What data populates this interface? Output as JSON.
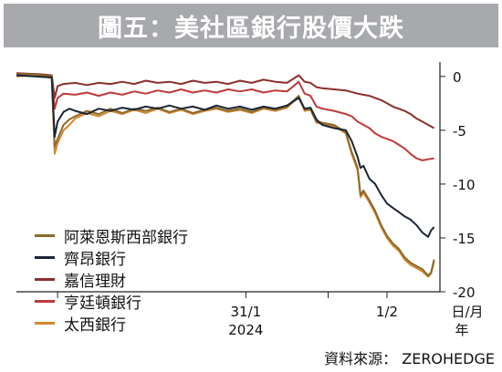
{
  "title": "圖五：美社區銀行股價大跌",
  "source": "資料來源： ZEROHEDGE",
  "chart_data": {
    "type": "line",
    "title": "圖五：美社區銀行股價大跌",
    "xlabel": "日/月\n年",
    "xlabel_line1": "日/月",
    "xlabel_line2": "年",
    "ylabel": "",
    "ylim": [
      -20,
      1
    ],
    "yticks": [
      0,
      -5,
      -10,
      -15,
      -20
    ],
    "x_tick_labels": [
      {
        "x": 39,
        "line1": "31/1",
        "line2": "2024"
      },
      {
        "x": 63,
        "line1": "1/2",
        "line2": ""
      }
    ],
    "xlim": [
      0,
      72
    ],
    "grid": false,
    "legend_position": "left",
    "colors": {
      "alerus": "#8b6b2b",
      "qcr": "#1b2535",
      "hingham": "#8c2f2a",
      "hilltop": "#c0393a",
      "pacwest": "#d4862e",
      "title_bg": "#a7a9ac"
    },
    "series": [
      {
        "name": "阿萊恩斯西部銀行",
        "key": "alerus",
        "points": [
          [
            0,
            0.2
          ],
          [
            3,
            0.2
          ],
          [
            6,
            0.0
          ],
          [
            6.5,
            -6.5
          ],
          [
            7,
            -5.8
          ],
          [
            8,
            -4.5
          ],
          [
            9,
            -4.0
          ],
          [
            10,
            -3.7
          ],
          [
            12,
            -3.2
          ],
          [
            14,
            -3.5
          ],
          [
            16,
            -3.0
          ],
          [
            18,
            -3.4
          ],
          [
            20,
            -3.0
          ],
          [
            22,
            -3.2
          ],
          [
            24,
            -2.9
          ],
          [
            26,
            -3.3
          ],
          [
            28,
            -3.0
          ],
          [
            30,
            -3.4
          ],
          [
            32,
            -3.1
          ],
          [
            34,
            -2.9
          ],
          [
            36,
            -3.2
          ],
          [
            38,
            -3.0
          ],
          [
            40,
            -3.3
          ],
          [
            42,
            -2.9
          ],
          [
            44,
            -3.1
          ],
          [
            46,
            -2.8
          ],
          [
            48,
            -1.8
          ],
          [
            49,
            -3.1
          ],
          [
            50,
            -3.0
          ],
          [
            51,
            -4.2
          ],
          [
            52,
            -4.3
          ],
          [
            54,
            -4.5
          ],
          [
            56,
            -5.2
          ],
          [
            57,
            -7.0
          ],
          [
            58,
            -8.5
          ],
          [
            58.5,
            -11.0
          ],
          [
            59,
            -10.6
          ],
          [
            60,
            -11.5
          ],
          [
            61,
            -12.5
          ],
          [
            62,
            -13.8
          ],
          [
            63,
            -14.8
          ],
          [
            64,
            -15.5
          ],
          [
            65,
            -16.0
          ],
          [
            66,
            -16.8
          ],
          [
            67,
            -17.3
          ],
          [
            68,
            -17.6
          ],
          [
            69,
            -17.9
          ],
          [
            70,
            -18.5
          ],
          [
            70.5,
            -18.2
          ],
          [
            71,
            -17.0
          ]
        ]
      },
      {
        "name": "齊昂銀行",
        "key": "qcr",
        "points": [
          [
            0,
            0.1
          ],
          [
            3,
            0.0
          ],
          [
            6,
            -0.1
          ],
          [
            6.5,
            -5.6
          ],
          [
            7,
            -4.2
          ],
          [
            8,
            -3.3
          ],
          [
            9,
            -3.0
          ],
          [
            10,
            -3.2
          ],
          [
            12,
            -3.5
          ],
          [
            14,
            -3.0
          ],
          [
            16,
            -3.2
          ],
          [
            18,
            -2.9
          ],
          [
            20,
            -3.1
          ],
          [
            22,
            -2.8
          ],
          [
            24,
            -3.0
          ],
          [
            26,
            -2.7
          ],
          [
            28,
            -3.0
          ],
          [
            30,
            -2.8
          ],
          [
            32,
            -3.1
          ],
          [
            34,
            -2.7
          ],
          [
            36,
            -3.0
          ],
          [
            38,
            -2.8
          ],
          [
            40,
            -3.1
          ],
          [
            42,
            -2.8
          ],
          [
            44,
            -3.0
          ],
          [
            46,
            -2.7
          ],
          [
            48,
            -2.0
          ],
          [
            49,
            -3.0
          ],
          [
            50,
            -2.9
          ],
          [
            51,
            -4.0
          ],
          [
            52,
            -4.5
          ],
          [
            54,
            -4.8
          ],
          [
            56,
            -5.0
          ],
          [
            57,
            -6.0
          ],
          [
            58,
            -7.5
          ],
          [
            58.5,
            -8.5
          ],
          [
            59,
            -8.3
          ],
          [
            60,
            -9.5
          ],
          [
            61,
            -10.0
          ],
          [
            62,
            -11.0
          ],
          [
            63,
            -11.8
          ],
          [
            64,
            -12.2
          ],
          [
            65,
            -12.6
          ],
          [
            66,
            -13.0
          ],
          [
            67,
            -13.3
          ],
          [
            68,
            -13.8
          ],
          [
            69,
            -14.5
          ],
          [
            70,
            -14.9
          ],
          [
            70.5,
            -14.3
          ],
          [
            71,
            -14.0
          ]
        ]
      },
      {
        "name": "嘉信理財",
        "key": "hingham",
        "points": [
          [
            0,
            0.3
          ],
          [
            4,
            0.2
          ],
          [
            6,
            0.1
          ],
          [
            6.5,
            -2.0
          ],
          [
            7,
            -0.9
          ],
          [
            8,
            -0.7
          ],
          [
            10,
            -0.6
          ],
          [
            12,
            -0.8
          ],
          [
            14,
            -0.6
          ],
          [
            16,
            -0.7
          ],
          [
            18,
            -0.5
          ],
          [
            20,
            -0.7
          ],
          [
            22,
            -0.4
          ],
          [
            24,
            -0.6
          ],
          [
            26,
            -0.5
          ],
          [
            28,
            -0.7
          ],
          [
            30,
            -0.4
          ],
          [
            32,
            -0.6
          ],
          [
            34,
            -0.5
          ],
          [
            36,
            -0.7
          ],
          [
            38,
            -0.4
          ],
          [
            40,
            -0.6
          ],
          [
            42,
            -0.3
          ],
          [
            44,
            -0.5
          ],
          [
            46,
            -0.6
          ],
          [
            48,
            0.1
          ],
          [
            49,
            -0.5
          ],
          [
            50,
            -0.6
          ],
          [
            51,
            -1.0
          ],
          [
            52,
            -1.1
          ],
          [
            54,
            -1.2
          ],
          [
            56,
            -1.3
          ],
          [
            58,
            -1.6
          ],
          [
            60,
            -1.8
          ],
          [
            62,
            -2.2
          ],
          [
            63,
            -2.5
          ],
          [
            64,
            -2.8
          ],
          [
            66,
            -3.2
          ],
          [
            67,
            -3.5
          ],
          [
            68,
            -3.9
          ],
          [
            69,
            -4.2
          ],
          [
            70,
            -4.5
          ],
          [
            71,
            -4.8
          ]
        ]
      },
      {
        "name": "亨廷頓銀行",
        "key": "hilltop",
        "points": [
          [
            0,
            0.1
          ],
          [
            4,
            0.0
          ],
          [
            6,
            -0.1
          ],
          [
            6.5,
            -3.0
          ],
          [
            7,
            -2.0
          ],
          [
            8,
            -1.6
          ],
          [
            10,
            -1.7
          ],
          [
            12,
            -1.5
          ],
          [
            14,
            -1.8
          ],
          [
            16,
            -1.5
          ],
          [
            18,
            -1.7
          ],
          [
            20,
            -1.4
          ],
          [
            22,
            -1.6
          ],
          [
            24,
            -1.3
          ],
          [
            26,
            -1.5
          ],
          [
            28,
            -1.2
          ],
          [
            30,
            -1.5
          ],
          [
            32,
            -1.3
          ],
          [
            34,
            -1.5
          ],
          [
            36,
            -1.2
          ],
          [
            38,
            -1.4
          ],
          [
            40,
            -1.2
          ],
          [
            42,
            -1.5
          ],
          [
            44,
            -1.3
          ],
          [
            46,
            -1.4
          ],
          [
            48,
            -0.5
          ],
          [
            49,
            -1.6
          ],
          [
            50,
            -1.8
          ],
          [
            51,
            -2.8
          ],
          [
            52,
            -3.0
          ],
          [
            54,
            -3.2
          ],
          [
            56,
            -3.5
          ],
          [
            57,
            -3.7
          ],
          [
            58,
            -4.2
          ],
          [
            60,
            -4.8
          ],
          [
            61,
            -5.3
          ],
          [
            62,
            -5.6
          ],
          [
            63,
            -5.8
          ],
          [
            64,
            -6.0
          ],
          [
            66,
            -6.7
          ],
          [
            67,
            -7.2
          ],
          [
            68,
            -7.6
          ],
          [
            69,
            -7.8
          ],
          [
            70,
            -7.7
          ],
          [
            71,
            -7.6
          ]
        ]
      },
      {
        "name": "太西銀行",
        "key": "pacwest",
        "points": [
          [
            0,
            0.0
          ],
          [
            3,
            0.1
          ],
          [
            6,
            0.0
          ],
          [
            6.5,
            -7.2
          ],
          [
            7,
            -6.2
          ],
          [
            8,
            -5.0
          ],
          [
            9,
            -4.5
          ],
          [
            10,
            -3.9
          ],
          [
            12,
            -3.4
          ],
          [
            14,
            -3.7
          ],
          [
            16,
            -3.2
          ],
          [
            18,
            -3.5
          ],
          [
            20,
            -3.1
          ],
          [
            22,
            -3.4
          ],
          [
            24,
            -3.0
          ],
          [
            26,
            -3.4
          ],
          [
            28,
            -3.1
          ],
          [
            30,
            -3.5
          ],
          [
            32,
            -3.2
          ],
          [
            34,
            -3.0
          ],
          [
            36,
            -3.3
          ],
          [
            38,
            -3.1
          ],
          [
            40,
            -3.4
          ],
          [
            42,
            -3.0
          ],
          [
            44,
            -3.2
          ],
          [
            46,
            -2.9
          ],
          [
            48,
            -1.9
          ],
          [
            49,
            -3.2
          ],
          [
            50,
            -3.1
          ],
          [
            51,
            -4.3
          ],
          [
            52,
            -4.4
          ],
          [
            54,
            -4.6
          ],
          [
            56,
            -5.3
          ],
          [
            57,
            -7.2
          ],
          [
            58,
            -8.7
          ],
          [
            58.5,
            -11.2
          ],
          [
            59,
            -10.8
          ],
          [
            60,
            -11.7
          ],
          [
            61,
            -12.7
          ],
          [
            62,
            -14.0
          ],
          [
            63,
            -15.0
          ],
          [
            64,
            -15.7
          ],
          [
            65,
            -16.2
          ],
          [
            66,
            -17.0
          ],
          [
            67,
            -17.5
          ],
          [
            68,
            -17.8
          ],
          [
            69,
            -18.1
          ],
          [
            70,
            -18.6
          ],
          [
            70.5,
            -18.3
          ],
          [
            71,
            -17.2
          ]
        ]
      }
    ]
  }
}
